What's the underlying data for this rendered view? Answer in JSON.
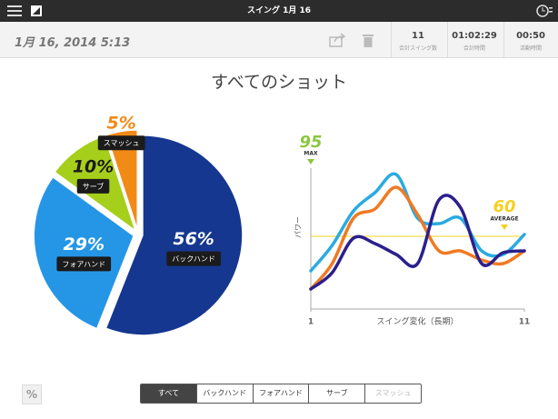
{
  "header": {
    "title": "スイング 1月 16"
  },
  "toolbar": {
    "date": "1月 16, 2014 5:13",
    "stats": [
      {
        "value": "11",
        "label": "合計スイング数"
      },
      {
        "value": "01:02:29",
        "label": "合計時間"
      },
      {
        "value": "00:50",
        "label": "活動時間"
      }
    ]
  },
  "view_title": "すべてのショット",
  "chart_data": [
    {
      "type": "pie",
      "categories": [
        "バックハンド",
        "フォアハンド",
        "サーブ",
        "スマッシュ"
      ],
      "values": [
        56,
        29,
        10,
        5
      ],
      "value_labels": [
        "56%",
        "29%",
        "10%",
        "5%"
      ],
      "colors": [
        "#15378f",
        "#2596e6",
        "#a6cf1c",
        "#f28a16"
      ]
    },
    {
      "type": "line",
      "x": [
        1,
        2,
        3,
        4,
        5,
        6,
        7,
        8,
        9,
        10,
        11
      ],
      "xlim": [
        1,
        11
      ],
      "xticks": [
        1,
        11
      ],
      "ylim": [
        20,
        100
      ],
      "x_label": "スイング変化（長期）",
      "y_label": "パワー",
      "series": [
        {
          "color": "#2aaae2",
          "values": [
            41,
            55,
            74,
            84,
            94,
            70,
            67,
            70,
            52,
            50,
            61
          ]
        },
        {
          "color": "#f07a22",
          "values": [
            31,
            45,
            70,
            75,
            87,
            72,
            52,
            52,
            47,
            45,
            52
          ]
        },
        {
          "color": "#2b1f8c",
          "values": [
            31,
            40,
            59,
            56,
            50,
            45,
            80,
            76,
            45,
            51,
            52
          ]
        }
      ],
      "max": 95,
      "max_label": "MAX",
      "average": 60,
      "average_label": "AVERAGE",
      "average_color": "#f5d020"
    }
  ],
  "tabs": {
    "items": [
      "すべて",
      "バックハンド",
      "フォアハンド",
      "サーブ",
      "スマッシュ"
    ],
    "active": 0,
    "disabled": [
      4
    ]
  },
  "percent_button": "%"
}
